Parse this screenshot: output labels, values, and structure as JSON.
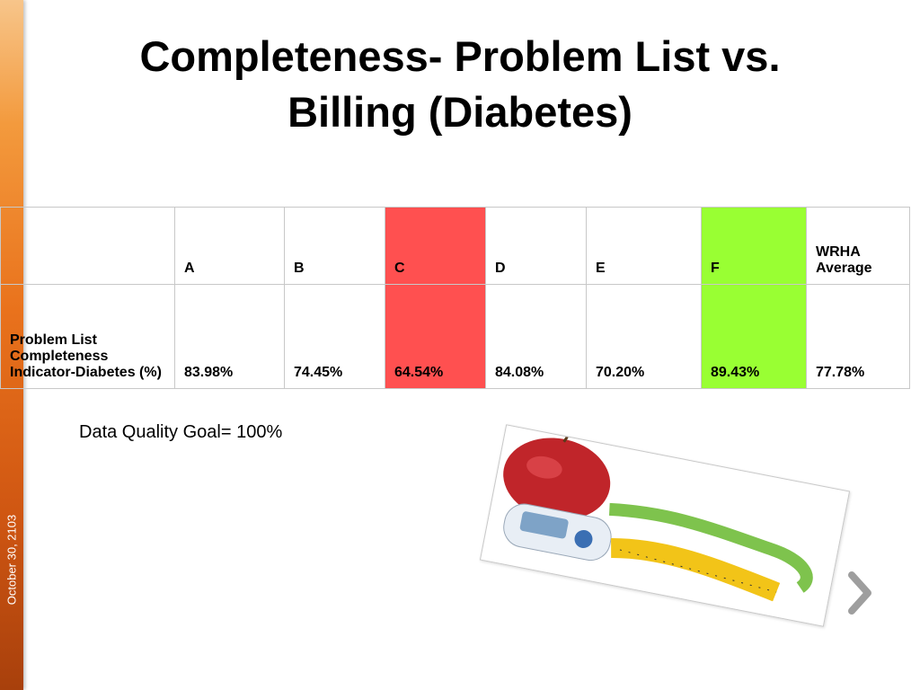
{
  "slide": {
    "title_line1": "Completeness- Problem List vs.",
    "title_line2": "Billing (Diabetes)",
    "date": "October 30, 2103",
    "goal": "Data Quality Goal= 100%"
  },
  "table": {
    "headers": [
      "",
      "A",
      "B",
      "C",
      "D",
      "E",
      "F",
      "WRHA Average"
    ],
    "row_label": "Problem List Completeness Indicator-Diabetes (%)",
    "values": [
      "83.98%",
      "74.45%",
      "64.54%",
      "84.08%",
      "70.20%",
      "89.43%",
      "77.78%"
    ],
    "highlight": {
      "C": "#ff5050",
      "F": "#99ff33"
    }
  },
  "image": {
    "icon": "diabetes-apple-glucometer-tape-photo"
  },
  "nav": {
    "icon": "chevron-right-icon"
  },
  "colors": {
    "sidebar": "#e9721c",
    "red": "#ff5050",
    "green": "#99ff33"
  }
}
